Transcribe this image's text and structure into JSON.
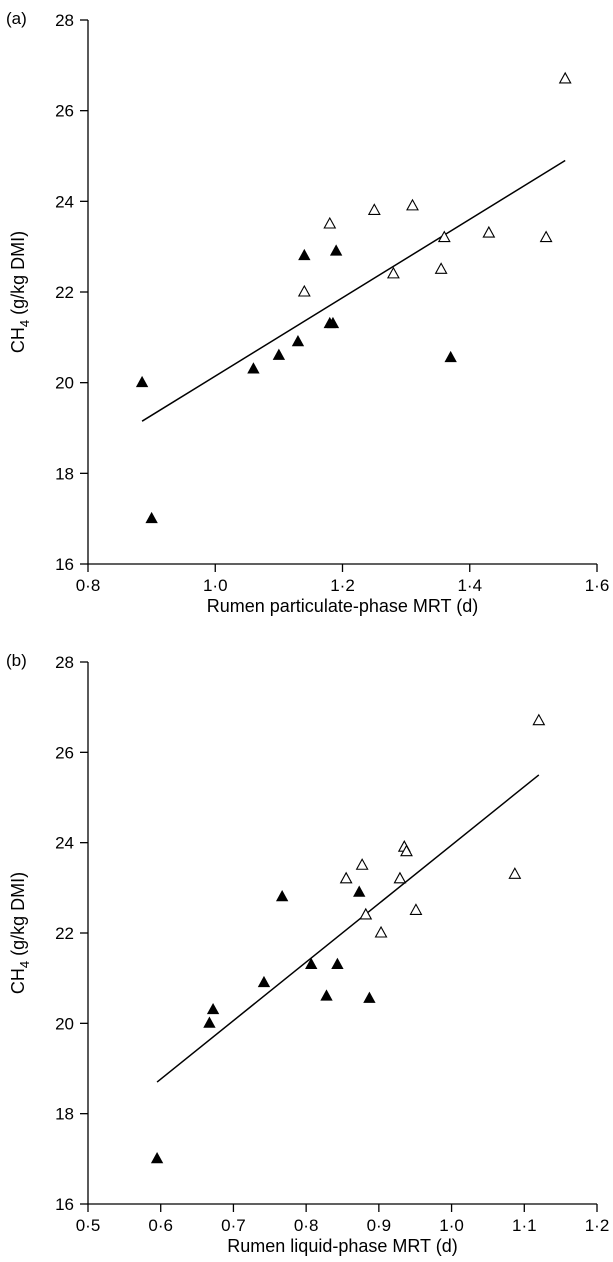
{
  "chart_data": [
    {
      "type": "scatter",
      "panel_label": "(a)",
      "xlabel": "Rumen particulate-phase MRT (d)",
      "ylabel_prefix": "CH",
      "ylabel_subscript": "4",
      "ylabel_suffix": " (g/kg DMI)",
      "xlim": [
        0.8,
        1.6
      ],
      "ylim": [
        16,
        28
      ],
      "x_ticks": [
        0.8,
        1.0,
        1.2,
        1.4,
        1.6
      ],
      "x_tick_labels": [
        "0·8",
        "1·0",
        "1·2",
        "1·4",
        "1·6"
      ],
      "y_ticks": [
        16,
        18,
        20,
        22,
        24,
        26,
        28
      ],
      "y_tick_labels": [
        "16",
        "18",
        "20",
        "22",
        "24",
        "26",
        "28"
      ],
      "grid": false,
      "series": [
        {
          "marker": "filled-triangle",
          "points": [
            [
              0.885,
              20.0
            ],
            [
              0.9,
              17.0
            ],
            [
              1.06,
              20.3
            ],
            [
              1.1,
              20.6
            ],
            [
              1.13,
              20.9
            ],
            [
              1.14,
              22.8
            ],
            [
              1.18,
              21.3
            ],
            [
              1.185,
              21.3
            ],
            [
              1.19,
              22.9
            ],
            [
              1.37,
              20.55
            ]
          ]
        },
        {
          "marker": "open-triangle",
          "points": [
            [
              1.14,
              22.0
            ],
            [
              1.18,
              23.5
            ],
            [
              1.25,
              23.8
            ],
            [
              1.28,
              22.4
            ],
            [
              1.31,
              23.9
            ],
            [
              1.355,
              22.5
            ],
            [
              1.36,
              23.2
            ],
            [
              1.43,
              23.3
            ],
            [
              1.52,
              23.2
            ],
            [
              1.55,
              26.7
            ]
          ]
        }
      ],
      "fit_line": {
        "x": [
          0.885,
          1.55
        ],
        "y": [
          19.15,
          24.9
        ]
      }
    },
    {
      "type": "scatter",
      "panel_label": "(b)",
      "xlabel": "Rumen liquid-phase MRT (d)",
      "ylabel_prefix": "CH",
      "ylabel_subscript": "4",
      "ylabel_suffix": " (g/kg DMI)",
      "xlim": [
        0.5,
        1.2
      ],
      "ylim": [
        16,
        28
      ],
      "x_ticks": [
        0.5,
        0.6,
        0.7,
        0.8,
        0.9,
        1.0,
        1.1,
        1.2
      ],
      "x_tick_labels": [
        "0·5",
        "0·6",
        "0·7",
        "0·8",
        "0·9",
        "1·0",
        "1·1",
        "1·2"
      ],
      "y_ticks": [
        16,
        18,
        20,
        22,
        24,
        26,
        28
      ],
      "y_tick_labels": [
        "16",
        "18",
        "20",
        "22",
        "24",
        "26",
        "28"
      ],
      "grid": false,
      "series": [
        {
          "marker": "filled-triangle",
          "points": [
            [
              0.595,
              17.0
            ],
            [
              0.667,
              20.0
            ],
            [
              0.672,
              20.3
            ],
            [
              0.742,
              20.9
            ],
            [
              0.767,
              22.8
            ],
            [
              0.807,
              21.3
            ],
            [
              0.828,
              20.6
            ],
            [
              0.843,
              21.3
            ],
            [
              0.873,
              22.9
            ],
            [
              0.887,
              20.55
            ]
          ]
        },
        {
          "marker": "open-triangle",
          "points": [
            [
              0.855,
              23.2
            ],
            [
              0.877,
              23.5
            ],
            [
              0.882,
              22.4
            ],
            [
              0.903,
              22.0
            ],
            [
              0.929,
              23.2
            ],
            [
              0.935,
              23.9
            ],
            [
              0.938,
              23.8
            ],
            [
              0.951,
              22.5
            ],
            [
              1.087,
              23.3
            ],
            [
              1.12,
              26.7
            ]
          ]
        }
      ],
      "fit_line": {
        "x": [
          0.595,
          1.12
        ],
        "y": [
          18.7,
          25.5
        ]
      }
    }
  ]
}
